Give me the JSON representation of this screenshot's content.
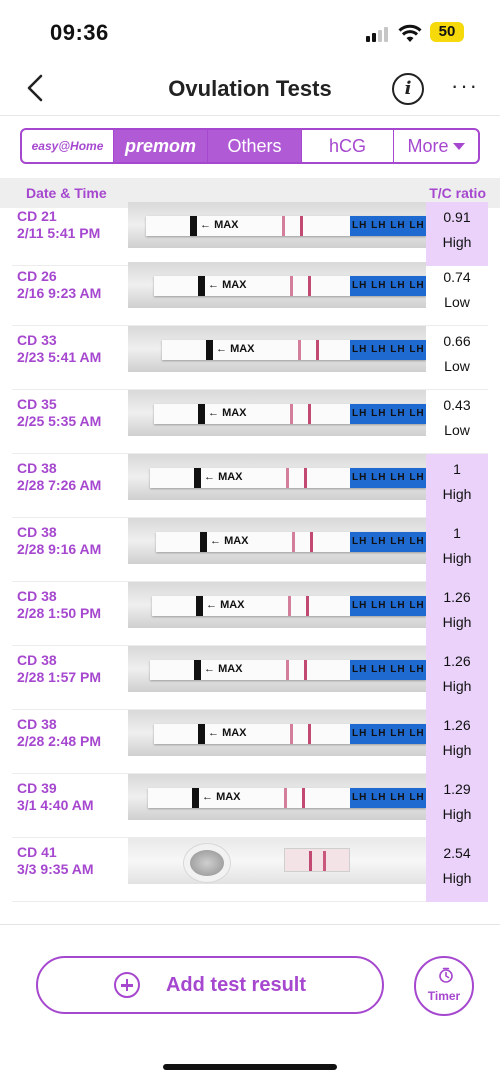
{
  "status_bar": {
    "time": "09:36",
    "battery": "50"
  },
  "nav": {
    "title": "Ovulation Tests",
    "info_glyph": "i",
    "more_glyph": "···"
  },
  "tabs": [
    {
      "label": "easy@Home",
      "selected": false
    },
    {
      "label": "premom",
      "selected": true
    },
    {
      "label": "Others",
      "selected": true
    },
    {
      "label": "hCG",
      "selected": false
    },
    {
      "label": "More",
      "selected": false
    }
  ],
  "columns": {
    "date": "Date & Time",
    "ratio": "T/C ratio"
  },
  "strip_text": {
    "max": "MAX",
    "lh": "LH LH LH LH LH LH"
  },
  "rows": [
    {
      "cd": "CD 21",
      "datetime": "2/11 5:41 PM",
      "ratio": "0.91",
      "level": "High"
    },
    {
      "cd": "CD 26",
      "datetime": "2/16 9:23 AM",
      "ratio": "0.74",
      "level": "Low"
    },
    {
      "cd": "CD 33",
      "datetime": "2/23 5:41 AM",
      "ratio": "0.66",
      "level": "Low"
    },
    {
      "cd": "CD 35",
      "datetime": "2/25 5:35 AM",
      "ratio": "0.43",
      "level": "Low"
    },
    {
      "cd": "CD 38",
      "datetime": "2/28 7:26 AM",
      "ratio": "1",
      "level": "High"
    },
    {
      "cd": "CD 38",
      "datetime": "2/28 9:16 AM",
      "ratio": "1",
      "level": "High"
    },
    {
      "cd": "CD 38",
      "datetime": "2/28 1:50 PM",
      "ratio": "1.26",
      "level": "High"
    },
    {
      "cd": "CD 38",
      "datetime": "2/28 1:57 PM",
      "ratio": "1.26",
      "level": "High"
    },
    {
      "cd": "CD 38",
      "datetime": "2/28 2:48 PM",
      "ratio": "1.26",
      "level": "High"
    },
    {
      "cd": "CD 39",
      "datetime": "3/1 4:40 AM",
      "ratio": "1.29",
      "level": "High"
    },
    {
      "cd": "CD 41",
      "datetime": "3/3 9:35 AM",
      "ratio": "2.54",
      "level": "High"
    }
  ],
  "bottom": {
    "add_label": "Add test result",
    "timer_label": "Timer"
  },
  "colors": {
    "accent": "#a648cf",
    "tab_selected": "#b15ad6",
    "high_bg": "#ead2fb",
    "test_line": "#c24a72",
    "strip_blue": "#1f6ad1"
  },
  "icons": [
    "back-chevron-icon",
    "info-icon",
    "more-dots-icon",
    "add-plus-icon",
    "timer-icon"
  ]
}
